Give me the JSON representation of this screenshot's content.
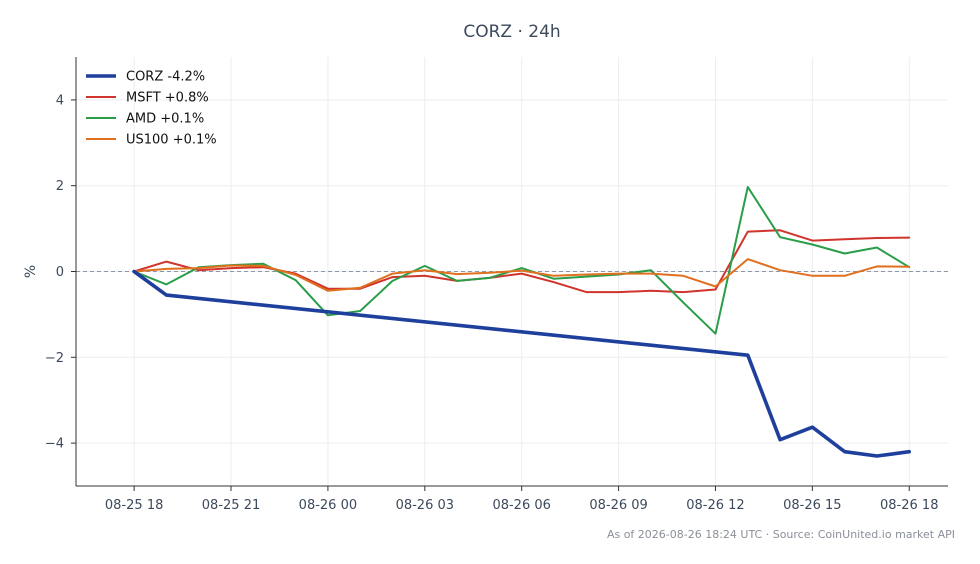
{
  "chart_data": {
    "type": "line",
    "title": "CORZ · 24h",
    "ylabel": "%",
    "xlabel": "",
    "x_tick_labels": [
      "08-25 18",
      "08-25 21",
      "08-26 00",
      "08-26 03",
      "08-26 06",
      "08-26 09",
      "08-26 12",
      "08-26 15",
      "08-26 18"
    ],
    "y_ticks": [
      -4,
      -2,
      0,
      2,
      4
    ],
    "ylim": [
      -5,
      5
    ],
    "xlim": [
      -1.8,
      25.2
    ],
    "grid": true,
    "zero_line": true,
    "legend_position": "top-left",
    "series": [
      {
        "name": "CORZ -4.2%",
        "color": "#1f3f9c",
        "x": [
          0,
          1,
          19,
          20,
          21,
          22,
          23,
          24
        ],
        "values": [
          0.0,
          -0.55,
          -1.95,
          -3.92,
          -3.63,
          -4.2,
          -4.3,
          -4.2
        ]
      },
      {
        "name": "MSFT +0.8%",
        "color": "#d0342c",
        "x": [
          0,
          1,
          2,
          3,
          4,
          5,
          6,
          7,
          8,
          9,
          10,
          11,
          12,
          13,
          14,
          15,
          16,
          17,
          18,
          19,
          20,
          21,
          22,
          23,
          24
        ],
        "values": [
          0.0,
          0.23,
          0.03,
          0.08,
          0.1,
          -0.05,
          -0.4,
          -0.4,
          -0.13,
          -0.1,
          -0.22,
          -0.15,
          -0.05,
          -0.25,
          -0.48,
          -0.48,
          -0.45,
          -0.48,
          -0.42,
          0.93,
          0.96,
          0.72,
          0.75,
          0.78,
          0.79
        ]
      },
      {
        "name": "AMD +0.1%",
        "color": "#2a9d48",
        "x": [
          0,
          1,
          2,
          3,
          4,
          5,
          6,
          7,
          8,
          9,
          10,
          11,
          12,
          13,
          14,
          15,
          16,
          17,
          18,
          19,
          20,
          21,
          22,
          23,
          24
        ],
        "values": [
          0.0,
          -0.3,
          0.1,
          0.15,
          0.18,
          -0.2,
          -1.02,
          -0.92,
          -0.22,
          0.13,
          -0.22,
          -0.15,
          0.08,
          -0.17,
          -0.12,
          -0.07,
          0.03,
          -0.72,
          -1.45,
          1.97,
          0.8,
          0.63,
          0.42,
          0.56,
          0.1
        ]
      },
      {
        "name": "US100 +0.1%",
        "color": "#e0701e",
        "x": [
          0,
          1,
          2,
          3,
          4,
          5,
          6,
          7,
          8,
          9,
          10,
          11,
          12,
          13,
          14,
          15,
          16,
          17,
          18,
          19,
          20,
          21,
          22,
          23,
          24
        ],
        "values": [
          0.0,
          0.06,
          0.08,
          0.14,
          0.13,
          -0.08,
          -0.45,
          -0.38,
          -0.05,
          0.03,
          -0.06,
          -0.03,
          0.02,
          -0.1,
          -0.07,
          -0.05,
          -0.05,
          -0.1,
          -0.35,
          0.29,
          0.03,
          -0.1,
          -0.1,
          0.12,
          0.11
        ]
      }
    ]
  },
  "footer": "As of 2026-08-26 18:24 UTC · Source: CoinUnited.io market API"
}
